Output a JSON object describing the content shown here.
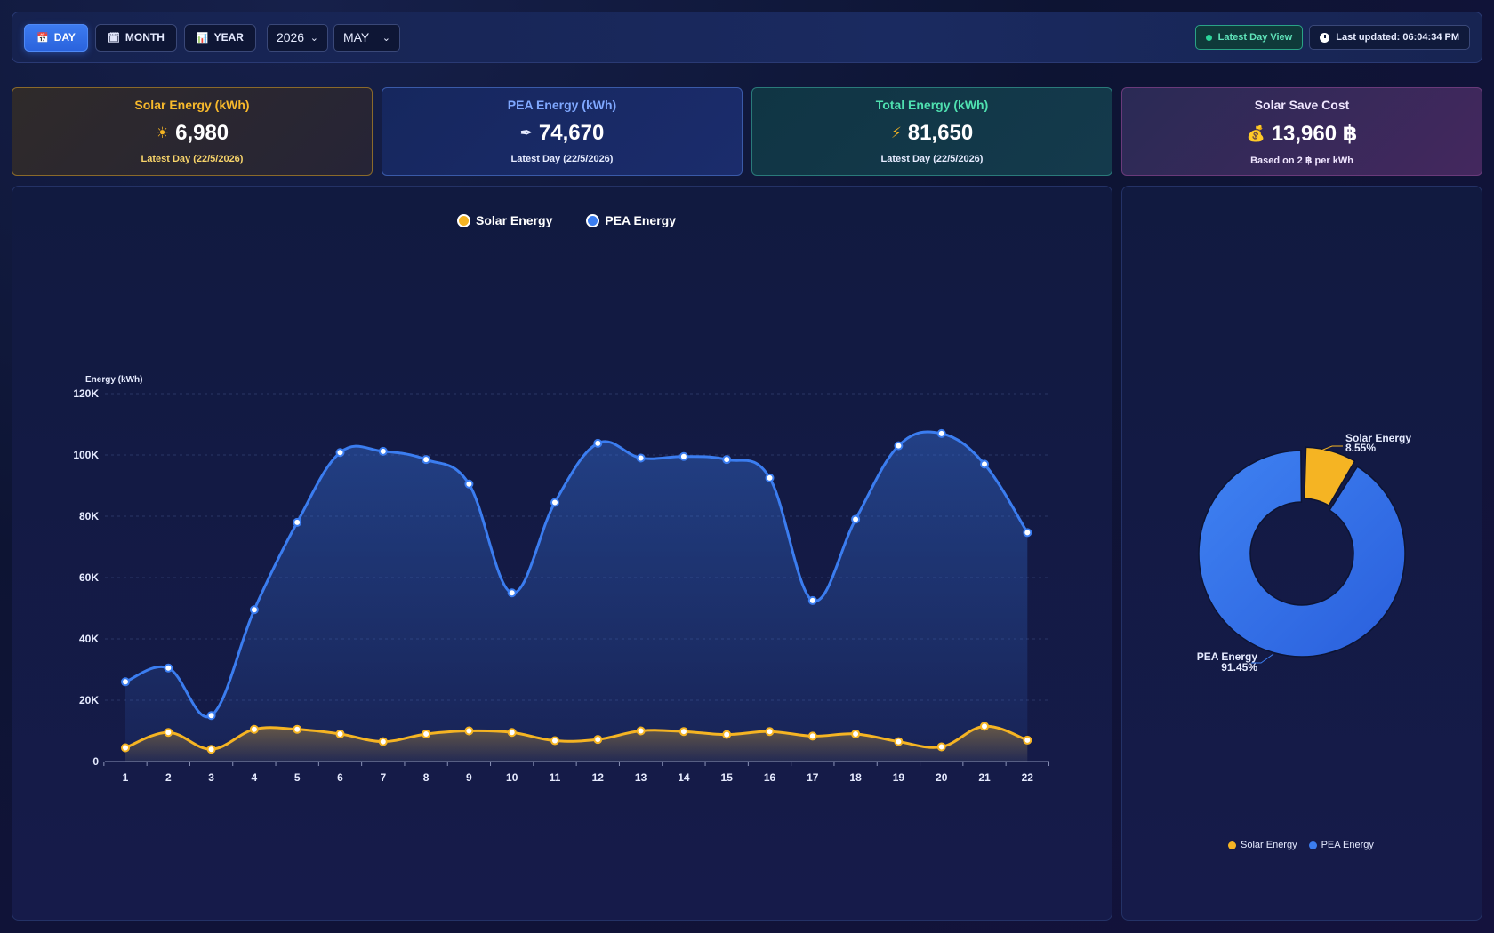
{
  "toolbar": {
    "buttons": [
      {
        "label": "DAY",
        "icon": "calendar-icon",
        "glyph": "📅",
        "active": true
      },
      {
        "label": "MONTH",
        "icon": "calendar-icon",
        "glyph": "🗓",
        "active": false
      },
      {
        "label": "YEAR",
        "icon": "chart-icon",
        "glyph": "📊",
        "active": false
      }
    ],
    "year_select": "2026",
    "month_select": "MAY",
    "latest_day_view": "Latest Day View",
    "last_updated": "Last updated: 06:04:34 PM"
  },
  "cards": {
    "solar": {
      "title": "Solar Energy (kWh)",
      "icon": "sun-icon",
      "glyph": "☀",
      "value": "6,980",
      "sub": "Latest Day (22/5/2026)"
    },
    "pea": {
      "title": "PEA Energy (kWh)",
      "icon": "plug-icon",
      "glyph": "✒",
      "value": "74,670",
      "sub": "Latest Day (22/5/2026)"
    },
    "total": {
      "title": "Total Energy (kWh)",
      "icon": "lightning-icon",
      "glyph": "⚡",
      "value": "81,650",
      "sub": "Latest Day (22/5/2026)"
    },
    "save": {
      "title": "Solar Save Cost",
      "icon": "money-bag-icon",
      "glyph": "💰",
      "value": "13,960 ฿",
      "sub": "Based on 2 ฿ per kWh"
    }
  },
  "colors": {
    "solar": "#f5b423",
    "pea": "#3b7df0"
  },
  "chart_data": [
    {
      "type": "line",
      "ylabel": "Energy (kWh)",
      "ylim": [
        0,
        120000
      ],
      "yticks": [
        "0",
        "20K",
        "40K",
        "60K",
        "80K",
        "100K",
        "120K"
      ],
      "categories": [
        "1",
        "2",
        "3",
        "4",
        "5",
        "6",
        "7",
        "8",
        "9",
        "10",
        "11",
        "12",
        "13",
        "14",
        "15",
        "16",
        "17",
        "18",
        "19",
        "20",
        "21",
        "22"
      ],
      "legend": "top-center",
      "series": [
        {
          "name": "Solar Energy",
          "values": [
            4500,
            9500,
            4000,
            10500,
            10500,
            9000,
            6500,
            9000,
            10000,
            9500,
            6800,
            7200,
            10000,
            9800,
            8800,
            9800,
            8300,
            9000,
            6500,
            4800,
            11500,
            6980
          ]
        },
        {
          "name": "PEA Energy",
          "values": [
            26000,
            30500,
            15000,
            49500,
            78000,
            100800,
            101200,
            98500,
            90500,
            55000,
            84500,
            103800,
            99000,
            99500,
            98500,
            92500,
            52500,
            79000,
            103000,
            107000,
            97000,
            74670
          ]
        }
      ]
    },
    {
      "type": "pie",
      "legend": "bottom-center",
      "slices": [
        {
          "name": "Solar Energy",
          "percent": 8.55,
          "label": "8.55%"
        },
        {
          "name": "PEA Energy",
          "percent": 91.45,
          "label": "91.45%"
        }
      ]
    }
  ]
}
